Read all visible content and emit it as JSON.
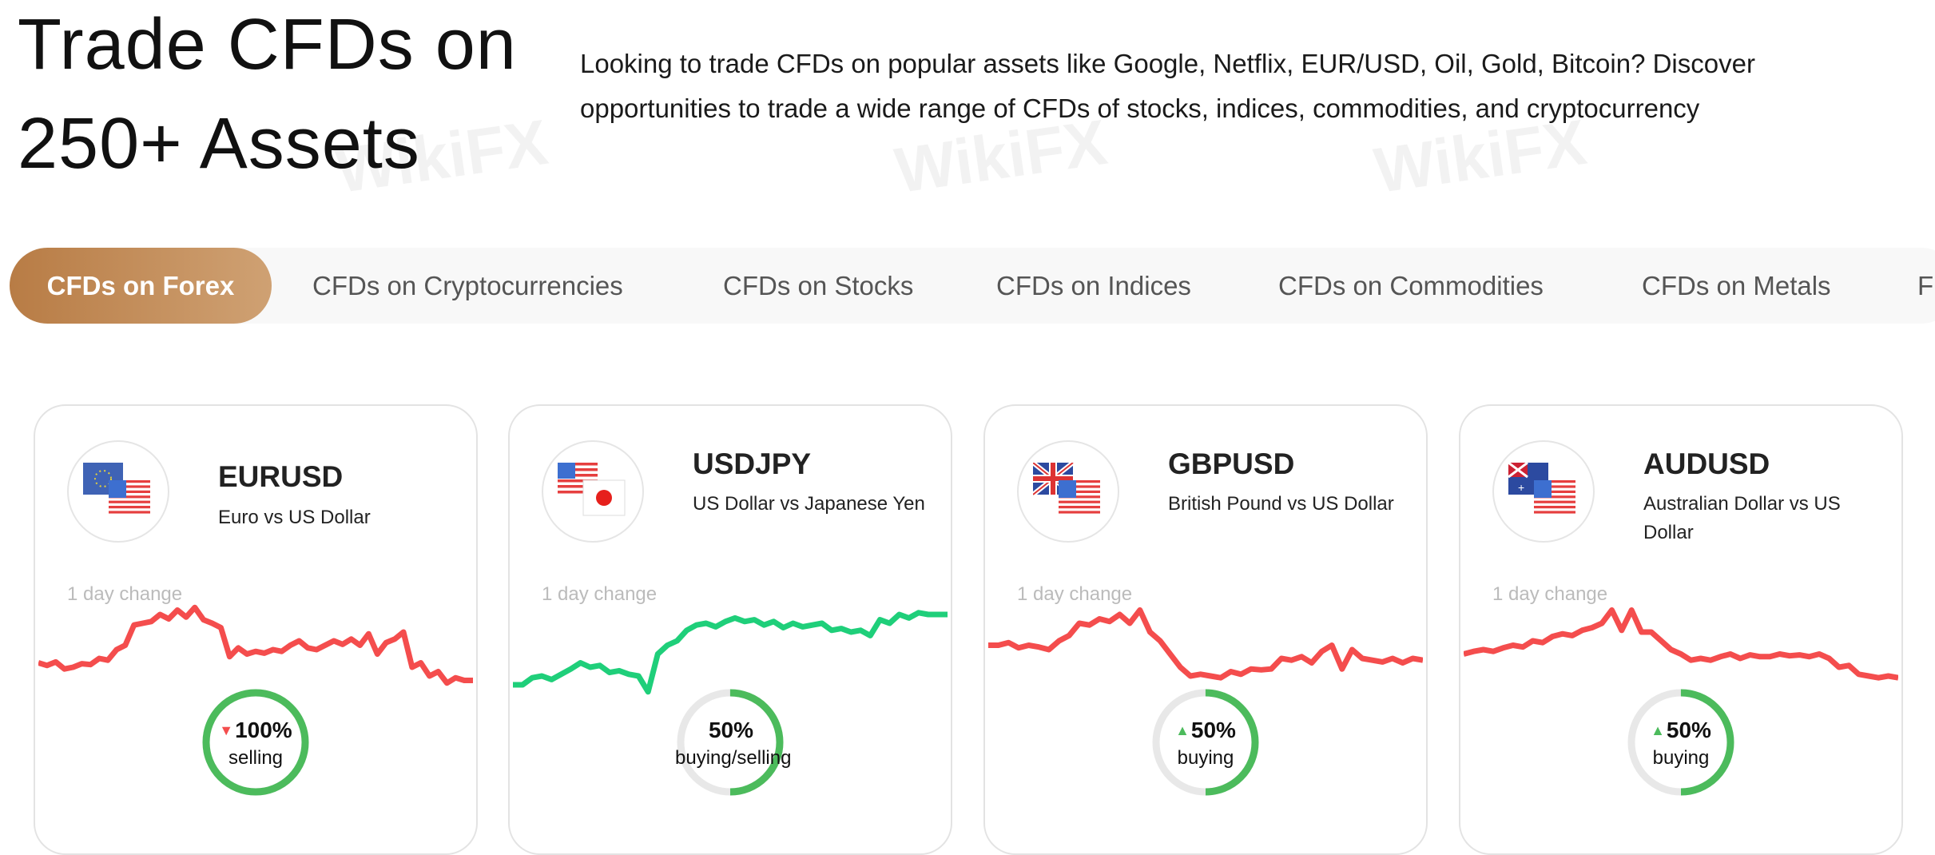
{
  "hero": {
    "title_line1": "Trade CFDs on",
    "title_line2": "250+ Assets",
    "description_line1": "Looking to trade CFDs on popular assets like Google, Netflix, EUR/USD, Oil, Gold, Bitcoin? Discover",
    "description_line2": "opportunities to trade a wide range of CFDs of stocks, indices, commodities, and cryptocurrency"
  },
  "tabs": [
    {
      "label": "CFDs on Forex",
      "active": true
    },
    {
      "label": "CFDs on Cryptocurrencies"
    },
    {
      "label": "CFDs on Stocks"
    },
    {
      "label": "CFDs on Indices"
    },
    {
      "label": "CFDs on Commodities"
    },
    {
      "label": "CFDs on Metals"
    },
    {
      "label": "F"
    }
  ],
  "colors": {
    "accent": "#c08a55",
    "down": "#f44d4d",
    "up": "#1fcf7a",
    "donut": "#4cbb5c",
    "donut_track": "#e8e8e8"
  },
  "cards": [
    {
      "symbol": "EURUSD",
      "name": "Euro vs US Dollar",
      "change_label": "1 day change",
      "trend": "down",
      "sentiment_pct": "100%",
      "sentiment_value": 1.0,
      "sentiment_label": "selling",
      "arrow": "▼",
      "arrow_dir": "down",
      "series": [
        0.35,
        0.32,
        0.36,
        0.28,
        0.3,
        0.34,
        0.33,
        0.4,
        0.38,
        0.5,
        0.55,
        0.78,
        0.8,
        0.82,
        0.9,
        0.85,
        0.95,
        0.87,
        0.98,
        0.84,
        0.8,
        0.75,
        0.42,
        0.52,
        0.45,
        0.48,
        0.46,
        0.5,
        0.48,
        0.55,
        0.6,
        0.52,
        0.5,
        0.55,
        0.6,
        0.56,
        0.62,
        0.55,
        0.68,
        0.45,
        0.58,
        0.62,
        0.7,
        0.3,
        0.35,
        0.2,
        0.25,
        0.12,
        0.18,
        0.15,
        0.15
      ]
    },
    {
      "symbol": "USDJPY",
      "name": "US Dollar vs Japanese Yen",
      "change_label": "1 day change",
      "trend": "up",
      "sentiment_pct": "50%",
      "sentiment_value": 0.5,
      "sentiment_label": "buying/selling",
      "arrow": "",
      "arrow_dir": "none",
      "series": [
        0.1,
        0.1,
        0.18,
        0.2,
        0.16,
        0.22,
        0.28,
        0.35,
        0.3,
        0.32,
        0.24,
        0.26,
        0.22,
        0.2,
        0.02,
        0.45,
        0.55,
        0.6,
        0.72,
        0.78,
        0.8,
        0.76,
        0.82,
        0.86,
        0.82,
        0.84,
        0.78,
        0.82,
        0.75,
        0.8,
        0.76,
        0.78,
        0.8,
        0.72,
        0.74,
        0.7,
        0.72,
        0.66,
        0.84,
        0.8,
        0.9,
        0.86,
        0.92,
        0.9,
        0.9,
        0.9
      ]
    },
    {
      "symbol": "GBPUSD",
      "name": "British Pound vs US Dollar",
      "change_label": "1 day change",
      "trend": "down",
      "sentiment_pct": "50%",
      "sentiment_value": 0.5,
      "sentiment_label": "buying",
      "arrow": "▲",
      "arrow_dir": "up",
      "series": [
        0.55,
        0.55,
        0.58,
        0.52,
        0.55,
        0.53,
        0.5,
        0.6,
        0.66,
        0.8,
        0.78,
        0.85,
        0.82,
        0.9,
        0.8,
        0.95,
        0.7,
        0.6,
        0.45,
        0.3,
        0.2,
        0.22,
        0.2,
        0.18,
        0.25,
        0.22,
        0.28,
        0.27,
        0.28,
        0.4,
        0.38,
        0.42,
        0.35,
        0.48,
        0.55,
        0.28,
        0.5,
        0.4,
        0.38,
        0.36,
        0.4,
        0.35,
        0.4,
        0.38
      ]
    },
    {
      "symbol": "AUDUSD",
      "name": "Australian Dollar vs US Dollar",
      "change_label": "1 day change",
      "trend": "down",
      "sentiment_pct": "50%",
      "sentiment_value": 0.5,
      "sentiment_label": "buying",
      "arrow": "▲",
      "arrow_dir": "up",
      "series": [
        0.45,
        0.48,
        0.5,
        0.48,
        0.52,
        0.55,
        0.53,
        0.6,
        0.58,
        0.65,
        0.68,
        0.66,
        0.72,
        0.75,
        0.8,
        0.95,
        0.72,
        0.95,
        0.7,
        0.7,
        0.6,
        0.5,
        0.45,
        0.38,
        0.4,
        0.38,
        0.42,
        0.45,
        0.4,
        0.44,
        0.42,
        0.42,
        0.45,
        0.43,
        0.44,
        0.42,
        0.45,
        0.4,
        0.3,
        0.32,
        0.22,
        0.2,
        0.18,
        0.2,
        0.18
      ]
    }
  ]
}
